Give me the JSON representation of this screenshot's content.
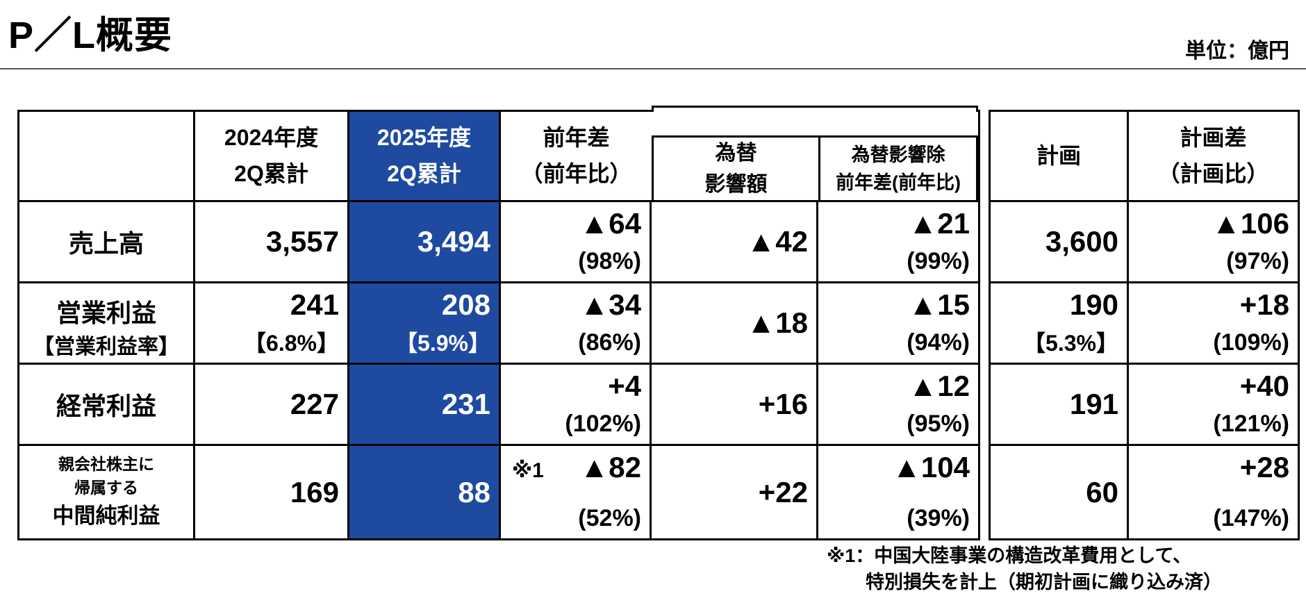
{
  "title": "P／L概要",
  "unit_label": "単位：億円",
  "colors": {
    "accent_blue": "#1E4BA0",
    "border": "#000000"
  },
  "table": {
    "headers": {
      "h_2024": [
        "2024年度",
        "2Q累計"
      ],
      "h_2025": [
        "2025年度",
        "2Q累計"
      ],
      "h_yoy": [
        "前年差",
        "（前年比）"
      ],
      "h_fx": [
        "為替",
        "影響額"
      ],
      "h_fx_ex": [
        "為替影響除",
        "前年差(前年比)"
      ],
      "h_plan": "計画",
      "h_plan_diff": [
        "計画差",
        "（計画比）"
      ]
    },
    "rows": [
      {
        "label": "売上高",
        "y2024": "3,557",
        "y2025": "3,494",
        "yoy": [
          "▲64",
          "(98%)"
        ],
        "fx": "▲42",
        "fx_ex": [
          "▲21",
          "(99%)"
        ],
        "plan": "3,600",
        "plan_diff": [
          "▲106",
          "(97%)"
        ]
      },
      {
        "label": "営業利益",
        "label_sub": "【営業利益率】",
        "y2024": [
          "241",
          "【6.8%】"
        ],
        "y2025": [
          "208",
          "【5.9%】"
        ],
        "yoy": [
          "▲34",
          "(86%)"
        ],
        "fx": "▲18",
        "fx_ex": [
          "▲15",
          "(94%)"
        ],
        "plan": [
          "190",
          "【5.3%】"
        ],
        "plan_diff": [
          "+18",
          "(109%)"
        ]
      },
      {
        "label": "経常利益",
        "y2024": "227",
        "y2025": "231",
        "yoy": [
          "+4",
          "(102%)"
        ],
        "fx": "+16",
        "fx_ex": [
          "▲12",
          "(95%)"
        ],
        "plan": "191",
        "plan_diff": [
          "+40",
          "(121%)"
        ]
      },
      {
        "label_small": [
          "親会社株主に",
          "帰属する"
        ],
        "label": "中間純利益",
        "y2024": "169",
        "y2025": "88",
        "yoy_note": "※1",
        "yoy": [
          "▲82",
          "(52%)"
        ],
        "fx": "+22",
        "fx_ex": [
          "▲104",
          "(39%)"
        ],
        "plan": "60",
        "plan_diff": [
          "+28",
          "(147%)"
        ]
      }
    ]
  },
  "footnote": [
    "※1：中国大陸事業の構造改革費用として、",
    "特別損失を計上（期初計画に織り込み済）"
  ]
}
